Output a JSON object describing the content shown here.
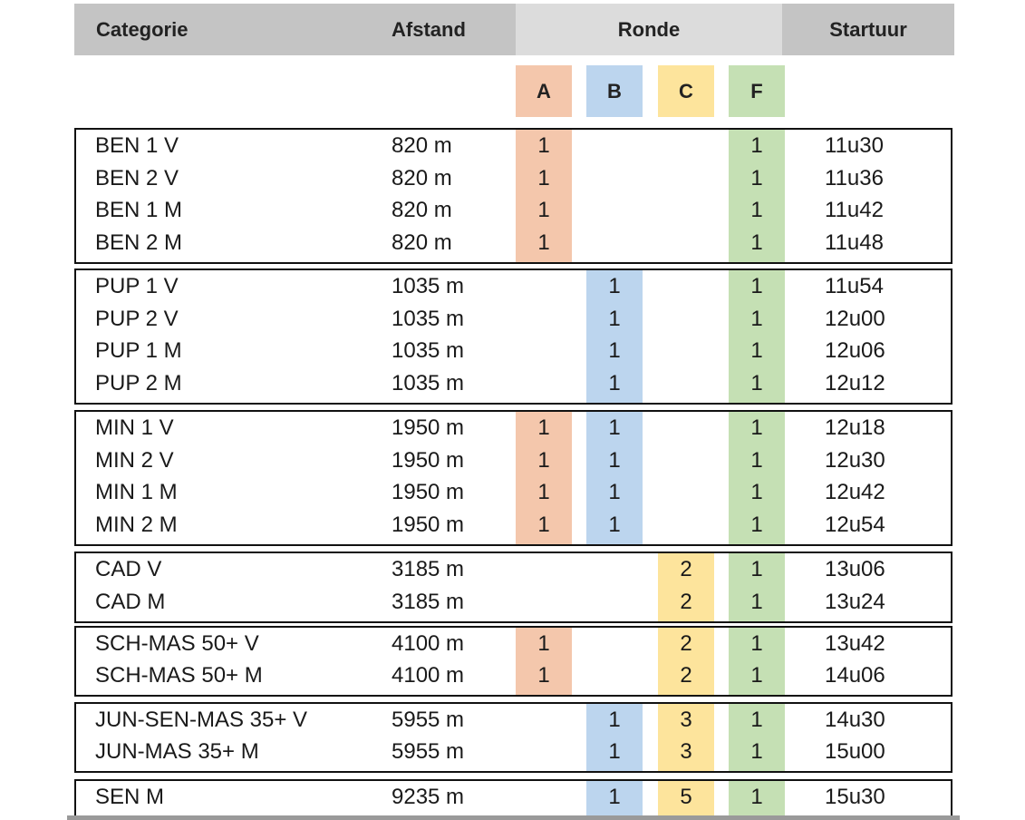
{
  "header": {
    "categorie": "Categorie",
    "afstand": "Afstand",
    "ronde": "Ronde",
    "startuur": "Startuur"
  },
  "rounds": [
    "A",
    "B",
    "C",
    "F"
  ],
  "colors": {
    "A": "#f4c7ac",
    "B": "#bcd5ee",
    "C": "#fde49c",
    "F": "#c5e0b4",
    "header_dark": "#c4c4c4",
    "header_light": "#dcdcdc"
  },
  "groups": [
    {
      "rows": [
        {
          "cat": "BEN 1 V",
          "dist": "820 m",
          "A": "1",
          "B": "",
          "C": "",
          "F": "1",
          "time": "11u30"
        },
        {
          "cat": "BEN 2 V",
          "dist": "820 m",
          "A": "1",
          "B": "",
          "C": "",
          "F": "1",
          "time": "11u36"
        },
        {
          "cat": "BEN 1 M",
          "dist": "820 m",
          "A": "1",
          "B": "",
          "C": "",
          "F": "1",
          "time": "11u42"
        },
        {
          "cat": "BEN 2 M",
          "dist": "820 m",
          "A": "1",
          "B": "",
          "C": "",
          "F": "1",
          "time": "11u48"
        }
      ]
    },
    {
      "rows": [
        {
          "cat": "PUP 1 V",
          "dist": "1035 m",
          "A": "",
          "B": "1",
          "C": "",
          "F": "1",
          "time": "11u54"
        },
        {
          "cat": "PUP 2 V",
          "dist": "1035 m",
          "A": "",
          "B": "1",
          "C": "",
          "F": "1",
          "time": "12u00"
        },
        {
          "cat": "PUP 1 M",
          "dist": "1035 m",
          "A": "",
          "B": "1",
          "C": "",
          "F": "1",
          "time": "12u06"
        },
        {
          "cat": "PUP 2 M",
          "dist": "1035 m",
          "A": "",
          "B": "1",
          "C": "",
          "F": "1",
          "time": "12u12"
        }
      ]
    },
    {
      "rows": [
        {
          "cat": "MIN 1 V",
          "dist": "1950 m",
          "A": "1",
          "B": "1",
          "C": "",
          "F": "1",
          "time": "12u18"
        },
        {
          "cat": "MIN 2 V",
          "dist": "1950 m",
          "A": "1",
          "B": "1",
          "C": "",
          "F": "1",
          "time": "12u30"
        },
        {
          "cat": "MIN 1 M",
          "dist": "1950 m",
          "A": "1",
          "B": "1",
          "C": "",
          "F": "1",
          "time": "12u42"
        },
        {
          "cat": "MIN 2 M",
          "dist": "1950 m",
          "A": "1",
          "B": "1",
          "C": "",
          "F": "1",
          "time": "12u54"
        }
      ]
    },
    {
      "rows": [
        {
          "cat": "CAD V",
          "dist": "3185 m",
          "A": "",
          "B": "",
          "C": "2",
          "F": "1",
          "time": "13u06"
        },
        {
          "cat": "CAD M",
          "dist": "3185 m",
          "A": "",
          "B": "",
          "C": "2",
          "F": "1",
          "time": "13u24"
        }
      ]
    },
    {
      "rows": [
        {
          "cat": "SCH-MAS 50+ V",
          "dist": "4100 m",
          "A": "1",
          "B": "",
          "C": "2",
          "F": "1",
          "time": "13u42"
        },
        {
          "cat": "SCH-MAS 50+ M",
          "dist": "4100 m",
          "A": "1",
          "B": "",
          "C": "2",
          "F": "1",
          "time": "14u06"
        }
      ]
    },
    {
      "rows": [
        {
          "cat": "JUN-SEN-MAS 35+ V",
          "dist": "5955 m",
          "A": "",
          "B": "1",
          "C": "3",
          "F": "1",
          "time": "14u30"
        },
        {
          "cat": "JUN-MAS 35+ M",
          "dist": "5955 m",
          "A": "",
          "B": "1",
          "C": "3",
          "F": "1",
          "time": "15u00"
        }
      ]
    },
    {
      "rows": [
        {
          "cat": "SEN M",
          "dist": "9235 m",
          "A": "",
          "B": "1",
          "C": "5",
          "F": "1",
          "time": "15u30"
        }
      ]
    }
  ]
}
